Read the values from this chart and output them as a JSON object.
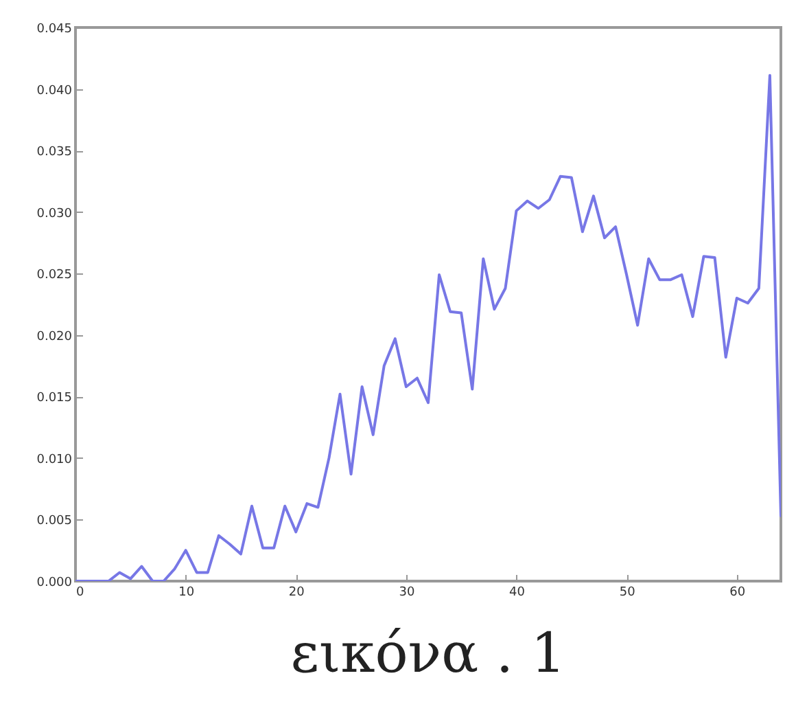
{
  "chart_data": {
    "type": "line",
    "x": [
      0,
      1,
      2,
      3,
      4,
      5,
      6,
      7,
      8,
      9,
      10,
      11,
      12,
      13,
      14,
      15,
      16,
      17,
      18,
      19,
      20,
      21,
      22,
      23,
      24,
      25,
      26,
      27,
      28,
      29,
      30,
      31,
      32,
      33,
      34,
      35,
      36,
      37,
      38,
      39,
      40,
      41,
      42,
      43,
      44,
      45,
      46,
      47,
      48,
      49,
      50,
      51,
      52,
      53,
      54,
      55,
      56,
      57,
      58,
      59,
      60,
      61,
      62,
      63,
      64
    ],
    "series": [
      {
        "color": "#7777e6",
        "values": [
          0,
          0,
          0,
          0,
          0.0007,
          0.0002,
          0.0012,
          0,
          0,
          0.001,
          0.0025,
          0.0007,
          0.0007,
          0.0037,
          0.003,
          0.0022,
          0.0061,
          0.0027,
          0.0027,
          0.0061,
          0.004,
          0.0063,
          0.006,
          0.01,
          0.0152,
          0.0087,
          0.0158,
          0.0119,
          0.0175,
          0.0197,
          0.0158,
          0.0165,
          0.0145,
          0.0249,
          0.0219,
          0.0218,
          0.0156,
          0.0262,
          0.0221,
          0.0238,
          0.0301,
          0.0309,
          0.0303,
          0.031,
          0.0329,
          0.0328,
          0.0284,
          0.0313,
          0.0279,
          0.0288,
          0.0249,
          0.0208,
          0.0262,
          0.0245,
          0.0245,
          0.0249,
          0.0215,
          0.0264,
          0.0263,
          0.0182,
          0.023,
          0.0226,
          0.0238,
          0.0411,
          0.0053
        ]
      }
    ],
    "xlim": [
      0,
      64
    ],
    "xticks": [
      0,
      10,
      20,
      30,
      40,
      50,
      60
    ],
    "ylim": [
      0,
      0.045
    ],
    "yticks": [
      {
        "value": 0,
        "label": "0.000"
      },
      {
        "value": 0.005,
        "label": "0.005"
      },
      {
        "value": 0.01,
        "label": "0.010"
      },
      {
        "value": 0.015,
        "label": "0.015"
      },
      {
        "value": 0.02,
        "label": "0.020"
      },
      {
        "value": 0.025,
        "label": "0.025"
      },
      {
        "value": 0.03,
        "label": "0.030"
      },
      {
        "value": 0.035,
        "label": "0.035"
      },
      {
        "value": 0.04,
        "label": "0.040"
      },
      {
        "value": 0.045,
        "label": "0.045"
      }
    ],
    "grid": false,
    "marker": "none",
    "line_style": "solid",
    "annotations": [
      "εικόνα . 1"
    ]
  }
}
